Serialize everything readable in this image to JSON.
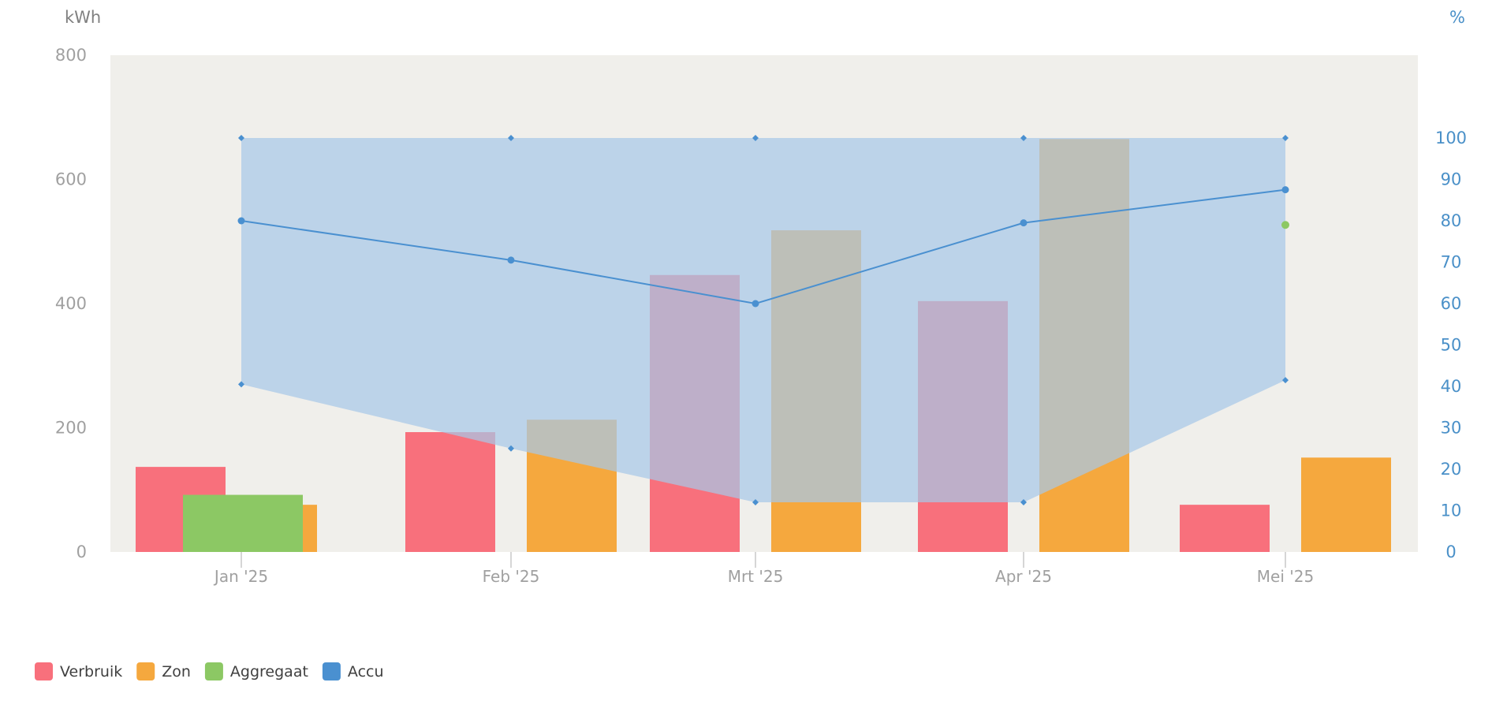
{
  "chart_data": {
    "type": "bar",
    "left_axis": {
      "unit": "kWh",
      "ticks": [
        "0",
        "200",
        "400",
        "600",
        "800"
      ],
      "ylim": [
        0,
        800
      ]
    },
    "right_axis": {
      "unit": "%",
      "ticks": [
        "0",
        "10",
        "20",
        "30",
        "40",
        "50",
        "60",
        "70",
        "80",
        "90",
        "100"
      ],
      "ylim": [
        0,
        120
      ]
    },
    "categories": [
      "Jan '25",
      "Feb '25",
      "Mrt '25",
      "Apr '25",
      "Mei '25"
    ],
    "series": [
      {
        "name": "Verbruik",
        "axis": "left",
        "kind": "bar",
        "color": "#f8707c",
        "values": [
          137,
          193,
          446,
          404,
          76
        ]
      },
      {
        "name": "Zon",
        "axis": "left",
        "kind": "bar",
        "color": "#f5a83e",
        "values": [
          76,
          213,
          518,
          665,
          152
        ]
      },
      {
        "name": "Aggregaat",
        "axis": "left",
        "kind": "bar",
        "color": "#8cc864",
        "values": [
          92,
          0,
          0,
          0,
          0
        ]
      },
      {
        "name": "Accu",
        "axis": "right",
        "kind": "line-range",
        "color": "#4a90d0",
        "values": [
          80,
          70.5,
          60,
          79.5,
          87.5
        ],
        "range_max": [
          100,
          100,
          100,
          100,
          100
        ],
        "range_min": [
          40.5,
          25,
          12,
          12,
          41.5
        ]
      }
    ],
    "extra_point": {
      "category": "Mei '25",
      "value": 79,
      "color": "#8cc864"
    },
    "plot_background": "#f0efeb",
    "range_fill": "#a8c8e8",
    "grid": false,
    "legend_position": "bottom-left"
  }
}
